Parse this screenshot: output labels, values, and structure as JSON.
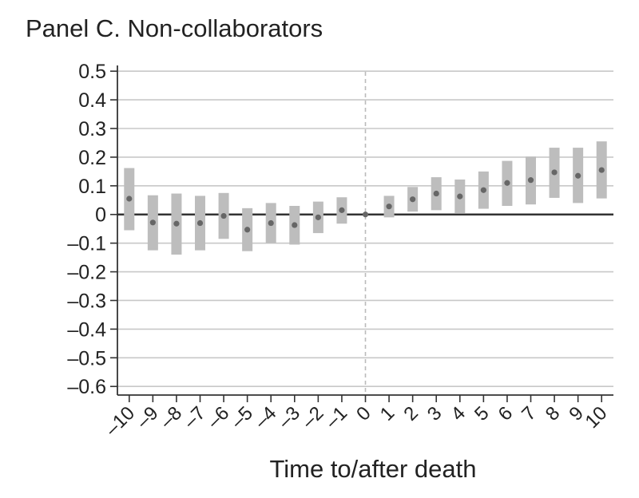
{
  "chart_data": {
    "type": "scatter",
    "title": "Panel C. Non-collaborators",
    "xlabel": "Time to/after death",
    "ylabel": "",
    "xlim": [
      -10.5,
      10.5
    ],
    "ylim": [
      -0.63,
      0.52
    ],
    "x_ticks": [
      -10,
      -9,
      -8,
      -7,
      -6,
      -5,
      -4,
      -3,
      -2,
      -1,
      0,
      1,
      2,
      3,
      4,
      5,
      6,
      7,
      8,
      9,
      10
    ],
    "x_tick_labels": [
      "–10",
      "–9",
      "–8",
      "–7",
      "–6",
      "–5",
      "–4",
      "–3",
      "–2",
      "–1",
      "0",
      "1",
      "2",
      "3",
      "4",
      "5",
      "6",
      "7",
      "8",
      "9",
      "10"
    ],
    "y_ticks": [
      0.5,
      0.4,
      0.3,
      0.2,
      0.1,
      0,
      -0.1,
      -0.2,
      -0.3,
      -0.4,
      -0.5,
      -0.6
    ],
    "y_tick_labels": [
      "0.5",
      "0.4",
      "0.3",
      "0.2",
      "0.1",
      "0",
      "–0.1",
      "–0.2",
      "–0.3",
      "–0.4",
      "–0.5",
      "–0.6"
    ],
    "grid": true,
    "reference_lines": {
      "horizontal_at": 0,
      "vertical_at": 0
    },
    "point_color": "#666666",
    "interval_color": "#bdbdbd",
    "points": [
      {
        "x": -10,
        "y": 0.055,
        "lo": -0.055,
        "hi": 0.162
      },
      {
        "x": -9,
        "y": -0.028,
        "lo": -0.125,
        "hi": 0.067
      },
      {
        "x": -8,
        "y": -0.032,
        "lo": -0.14,
        "hi": 0.073
      },
      {
        "x": -7,
        "y": -0.03,
        "lo": -0.125,
        "hi": 0.065
      },
      {
        "x": -6,
        "y": -0.005,
        "lo": -0.085,
        "hi": 0.075
      },
      {
        "x": -5,
        "y": -0.053,
        "lo": -0.128,
        "hi": 0.022
      },
      {
        "x": -4,
        "y": -0.03,
        "lo": -0.1,
        "hi": 0.04
      },
      {
        "x": -3,
        "y": -0.037,
        "lo": -0.105,
        "hi": 0.03
      },
      {
        "x": -2,
        "y": -0.01,
        "lo": -0.065,
        "hi": 0.045
      },
      {
        "x": -1,
        "y": 0.015,
        "lo": -0.032,
        "hi": 0.06
      },
      {
        "x": 0,
        "y": 0.0,
        "lo": 0.0,
        "hi": 0.0
      },
      {
        "x": 1,
        "y": 0.028,
        "lo": -0.01,
        "hi": 0.065
      },
      {
        "x": 2,
        "y": 0.053,
        "lo": 0.01,
        "hi": 0.096
      },
      {
        "x": 3,
        "y": 0.073,
        "lo": 0.015,
        "hi": 0.13
      },
      {
        "x": 4,
        "y": 0.063,
        "lo": 0.005,
        "hi": 0.122
      },
      {
        "x": 5,
        "y": 0.085,
        "lo": 0.02,
        "hi": 0.15
      },
      {
        "x": 6,
        "y": 0.11,
        "lo": 0.03,
        "hi": 0.187
      },
      {
        "x": 7,
        "y": 0.12,
        "lo": 0.035,
        "hi": 0.202
      },
      {
        "x": 8,
        "y": 0.147,
        "lo": 0.058,
        "hi": 0.233
      },
      {
        "x": 9,
        "y": 0.135,
        "lo": 0.04,
        "hi": 0.233
      },
      {
        "x": 10,
        "y": 0.155,
        "lo": 0.056,
        "hi": 0.255
      }
    ]
  }
}
